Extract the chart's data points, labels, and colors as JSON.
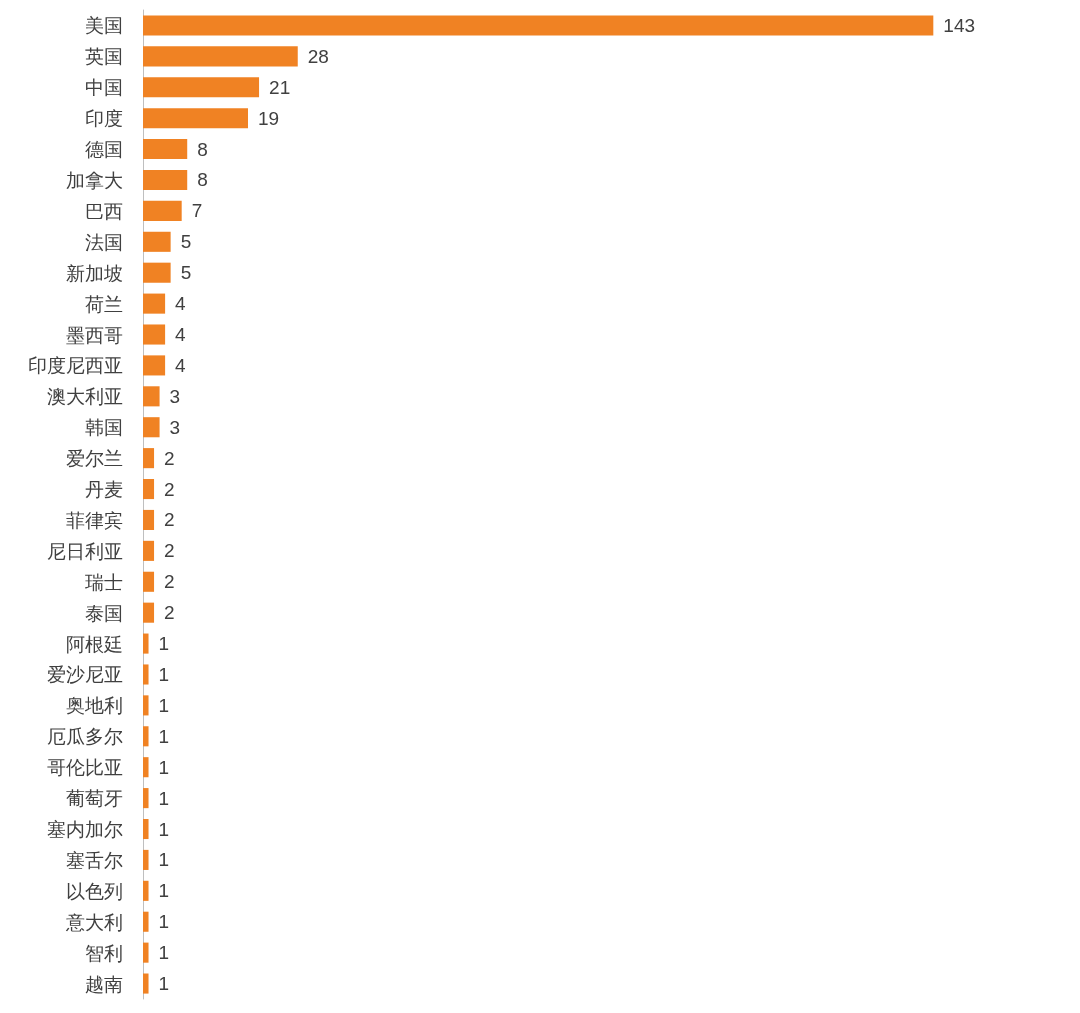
{
  "chart_data": {
    "type": "bar",
    "orientation": "horizontal",
    "categories": [
      "美国",
      "英国",
      "中国",
      "印度",
      "德国",
      "加拿大",
      "巴西",
      "法国",
      "新加坡",
      "荷兰",
      "墨西哥",
      "印度尼西亚",
      "澳大利亚",
      "韩国",
      "爱尔兰",
      "丹麦",
      "菲律宾",
      "尼日利亚",
      "瑞士",
      "泰国",
      "阿根廷",
      "爱沙尼亚",
      "奥地利",
      "厄瓜多尔",
      "哥伦比亚",
      "葡萄牙",
      "塞内加尔",
      "塞舌尔",
      "以色列",
      "意大利",
      "智利",
      "越南"
    ],
    "values": [
      143,
      28,
      21,
      19,
      8,
      8,
      7,
      5,
      5,
      4,
      4,
      4,
      3,
      3,
      2,
      2,
      2,
      2,
      2,
      2,
      1,
      1,
      1,
      1,
      1,
      1,
      1,
      1,
      1,
      1,
      1,
      1
    ],
    "color": "#f08223",
    "data_labels": true,
    "grid": false,
    "tick_labels": "y"
  }
}
